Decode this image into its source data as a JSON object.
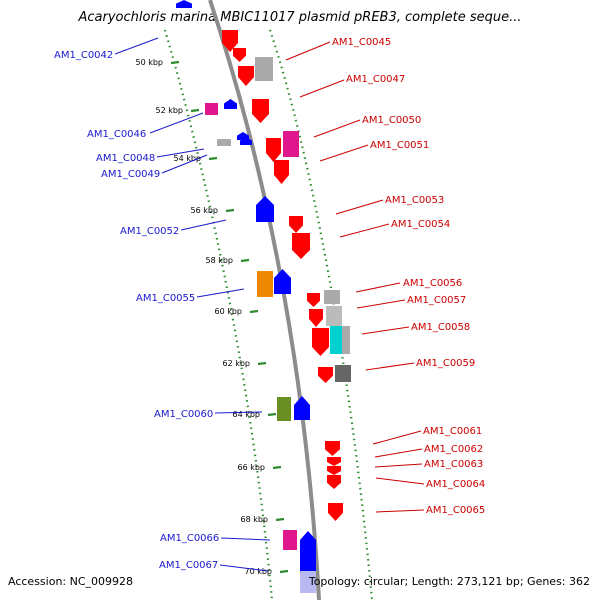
{
  "title": "Acaryochloris marina MBIC11017 plasmid pREB3, complete seque...",
  "footer": {
    "accession": "Accession: NC_009928",
    "info": "Topology: circular; Length: 273,121 bp; Genes: 362"
  },
  "colors": {
    "backbone": "#8c8c8c",
    "dotted_ring": "#2e8b2e",
    "forward_label": "#cc0000",
    "reverse_label": "#1a1acc"
  },
  "ticks": [
    "50 kbp",
    "52 kbp",
    "54 kbp",
    "56 kbp",
    "58 kbp",
    "60 kbp",
    "62 kbp",
    "64 kbp",
    "66 kbp",
    "68 kbp",
    "70 kbp"
  ],
  "genes": [
    {
      "label": "AM1_C0042",
      "color": "#0000ff",
      "strand": "reverse"
    },
    {
      "label": "AM1_C0045",
      "color": "#ff0000",
      "strand": "forward"
    },
    {
      "label": "AM1_C0047",
      "color": "#aaaaaa",
      "strand": "forward"
    },
    {
      "label": "AM1_C0046",
      "color": "#e0168c",
      "strand": "reverse"
    },
    {
      "label": "AM1_C0050",
      "color": "#ff0000",
      "strand": "forward"
    },
    {
      "label": "AM1_C0051",
      "color": "#e0168c",
      "strand": "forward"
    },
    {
      "label": "AM1_C0048",
      "color": "#aaaaaa",
      "strand": "reverse"
    },
    {
      "label": "AM1_C0049",
      "color": "#0000ff",
      "strand": "reverse"
    },
    {
      "label": "AM1_C0053",
      "color": "#ff0000",
      "strand": "forward"
    },
    {
      "label": "AM1_C0054",
      "color": "#ff0000",
      "strand": "forward"
    },
    {
      "label": "AM1_C0052",
      "color": "#0000ff",
      "strand": "reverse"
    },
    {
      "label": "AM1_C0056",
      "color": "#ff0000",
      "strand": "forward"
    },
    {
      "label": "AM1_C0057",
      "color": "#aaaaaa",
      "strand": "forward"
    },
    {
      "label": "AM1_C0055",
      "color": "#ee8800",
      "strand": "reverse"
    },
    {
      "label": "AM1_C0058",
      "color": "#00d0d0",
      "strand": "forward"
    },
    {
      "label": "AM1_C0059",
      "color": "#666666",
      "strand": "forward"
    },
    {
      "label": "AM1_C0060",
      "color": "#6b8e23",
      "strand": "reverse"
    },
    {
      "label": "AM1_C0061",
      "color": "#ff0000",
      "strand": "forward"
    },
    {
      "label": "AM1_C0062",
      "color": "#ff0000",
      "strand": "forward"
    },
    {
      "label": "AM1_C0063",
      "color": "#ff0000",
      "strand": "forward"
    },
    {
      "label": "AM1_C0064",
      "color": "#ff0000",
      "strand": "forward"
    },
    {
      "label": "AM1_C0065",
      "color": "#ff0000",
      "strand": "forward"
    },
    {
      "label": "AM1_C0066",
      "color": "#e0168c",
      "strand": "reverse"
    },
    {
      "label": "AM1_C0067",
      "color": "#0000ff",
      "strand": "reverse"
    }
  ]
}
